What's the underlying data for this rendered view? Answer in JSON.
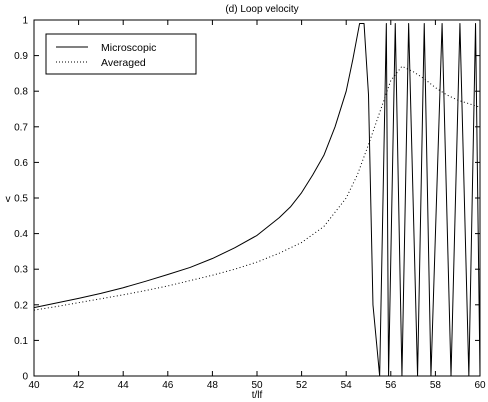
{
  "chart_data": {
    "type": "line",
    "title": "(d) Loop velocity",
    "xlabel": "t/lf",
    "ylabel": "v",
    "xlim": [
      40,
      60
    ],
    "ylim": [
      0,
      1
    ],
    "xticks": [
      40,
      42,
      44,
      46,
      48,
      50,
      52,
      54,
      56,
      58,
      60
    ],
    "yticks": [
      0,
      0.1,
      0.2,
      0.3,
      0.4,
      0.5,
      0.6,
      0.7,
      0.8,
      0.9,
      1
    ],
    "grid": false,
    "legend_position": "top-left",
    "series": [
      {
        "name": "Microscopic",
        "style": "solid",
        "color": "#000000",
        "x": [
          40,
          41,
          42,
          43,
          44,
          45,
          46,
          47,
          48,
          49,
          50,
          51,
          51.5,
          52,
          52.5,
          53,
          53.5,
          54,
          54.3,
          54.6,
          54.8,
          55,
          55.2,
          55.5,
          55.8,
          55.9,
          56.2,
          56.5,
          56.8,
          57.2,
          57.5,
          57.8,
          58.3,
          58.7,
          59.1,
          59.5,
          59.8,
          60
        ],
        "y": [
          0.192,
          0.205,
          0.218,
          0.232,
          0.248,
          0.266,
          0.285,
          0.305,
          0.33,
          0.36,
          0.395,
          0.445,
          0.475,
          0.515,
          0.565,
          0.62,
          0.7,
          0.8,
          0.89,
          0.99,
          0.99,
          0.79,
          0.2,
          0.0,
          0.99,
          0.0,
          0.99,
          0.0,
          0.99,
          0.0,
          0.99,
          0.0,
          0.99,
          0.0,
          0.99,
          0.0,
          0.99,
          0.0
        ]
      },
      {
        "name": "Averaged",
        "style": "dotted",
        "color": "#000000",
        "x": [
          40,
          41,
          42,
          43,
          44,
          45,
          46,
          47,
          48,
          49,
          50,
          51,
          52,
          53,
          54,
          54.5,
          55,
          55.5,
          56,
          56.5,
          57,
          57.5,
          58,
          58.5,
          59,
          59.5,
          60
        ],
        "y": [
          0.185,
          0.195,
          0.206,
          0.217,
          0.228,
          0.24,
          0.253,
          0.268,
          0.283,
          0.3,
          0.32,
          0.345,
          0.375,
          0.42,
          0.5,
          0.565,
          0.65,
          0.74,
          0.83,
          0.87,
          0.855,
          0.835,
          0.81,
          0.79,
          0.775,
          0.765,
          0.755
        ]
      }
    ]
  }
}
